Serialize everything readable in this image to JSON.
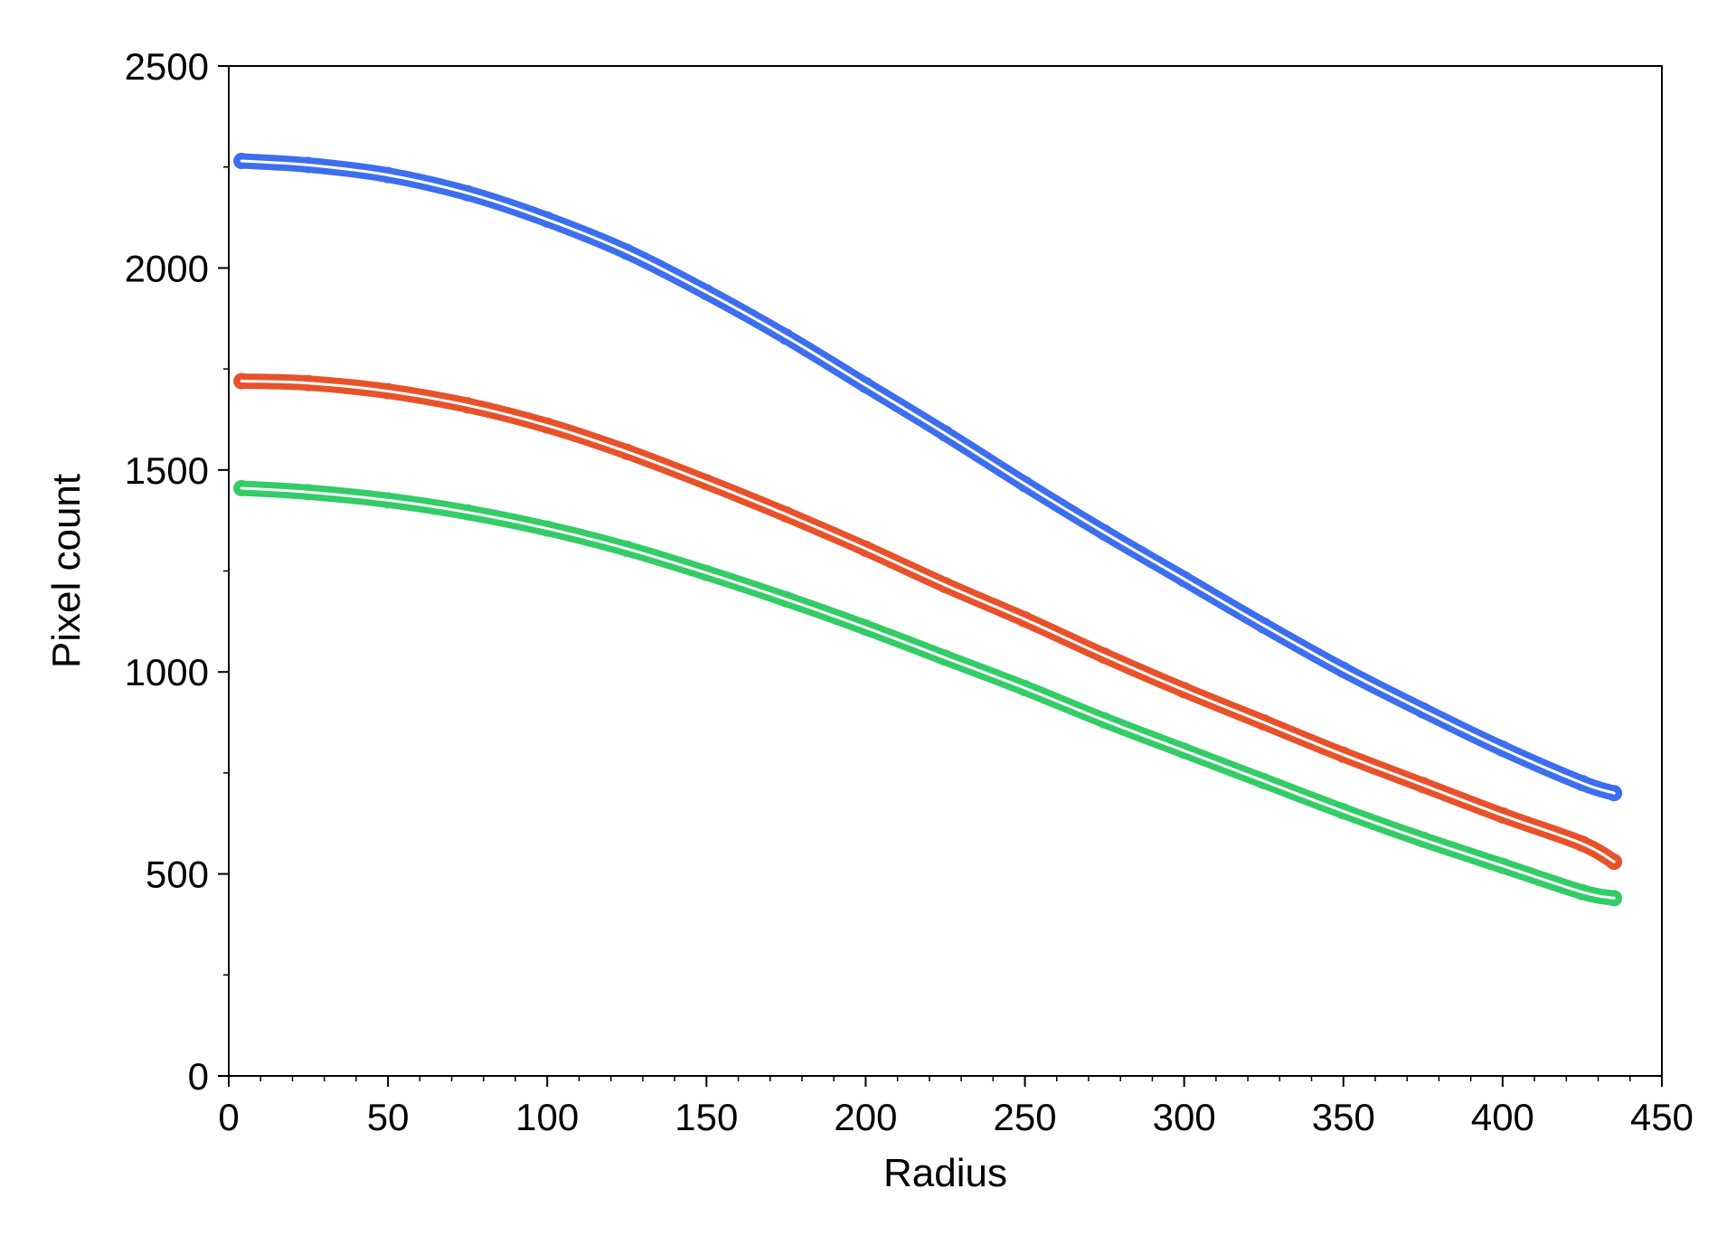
{
  "chart_data": {
    "type": "scatter",
    "xlabel": "Radius",
    "ylabel": "Pixel count",
    "xlim": [
      0,
      450
    ],
    "ylim": [
      0,
      2500
    ],
    "x_ticks": [
      0,
      50,
      100,
      150,
      200,
      250,
      300,
      350,
      400,
      450
    ],
    "y_ticks": [
      0,
      500,
      1000,
      1500,
      2000,
      2500
    ],
    "x_tick_labels": [
      "0",
      "50",
      "100",
      "150",
      "200",
      "250",
      "300",
      "350",
      "400",
      "450"
    ],
    "y_tick_labels": [
      "0",
      "500",
      "1000",
      "1500",
      "2000",
      "2500"
    ],
    "grid": false,
    "legend": "none",
    "fit_line_color": "#ffffff",
    "series": [
      {
        "color": "#3d6ef0",
        "x": [
          4,
          25,
          50,
          75,
          100,
          125,
          150,
          175,
          200,
          225,
          250,
          275,
          300,
          325,
          350,
          375,
          400,
          425,
          435
        ],
        "y": [
          2265,
          2255,
          2230,
          2185,
          2120,
          2040,
          1940,
          1830,
          1710,
          1590,
          1465,
          1345,
          1230,
          1115,
          1005,
          905,
          810,
          725,
          700
        ]
      },
      {
        "color": "#e8522a",
        "x": [
          4,
          25,
          50,
          75,
          100,
          125,
          150,
          175,
          200,
          225,
          250,
          275,
          300,
          325,
          350,
          375,
          400,
          425,
          435
        ],
        "y": [
          1720,
          1715,
          1695,
          1660,
          1610,
          1545,
          1470,
          1390,
          1305,
          1215,
          1130,
          1040,
          955,
          875,
          795,
          720,
          645,
          575,
          530
        ]
      },
      {
        "color": "#33cc66",
        "x": [
          4,
          25,
          50,
          75,
          100,
          125,
          150,
          175,
          200,
          225,
          250,
          275,
          300,
          325,
          350,
          375,
          400,
          425,
          435
        ],
        "y": [
          1455,
          1445,
          1425,
          1395,
          1355,
          1305,
          1245,
          1180,
          1110,
          1035,
          960,
          880,
          805,
          730,
          655,
          585,
          520,
          455,
          440
        ]
      }
    ]
  }
}
